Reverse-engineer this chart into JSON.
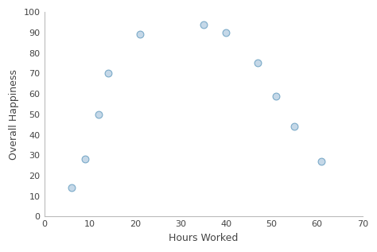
{
  "x": [
    6,
    9,
    12,
    14,
    21,
    35,
    40,
    47,
    51,
    55,
    61
  ],
  "y": [
    14,
    28,
    50,
    70,
    89,
    94,
    90,
    75,
    59,
    44,
    27
  ],
  "xlabel": "Hours Worked",
  "ylabel": "Overall Happiness",
  "xlim": [
    0,
    70
  ],
  "ylim": [
    0,
    100
  ],
  "xticks": [
    0,
    10,
    20,
    30,
    40,
    50,
    60,
    70
  ],
  "yticks": [
    0,
    10,
    20,
    30,
    40,
    50,
    60,
    70,
    80,
    90,
    100
  ],
  "marker_face_color": "#c5d8e8",
  "marker_edge_color": "#7aaac8",
  "marker_size": 40,
  "marker_linewidth": 0.8,
  "spine_color": "#bbbbbb",
  "label_fontsize": 9,
  "tick_fontsize": 8,
  "tick_color": "#444444"
}
